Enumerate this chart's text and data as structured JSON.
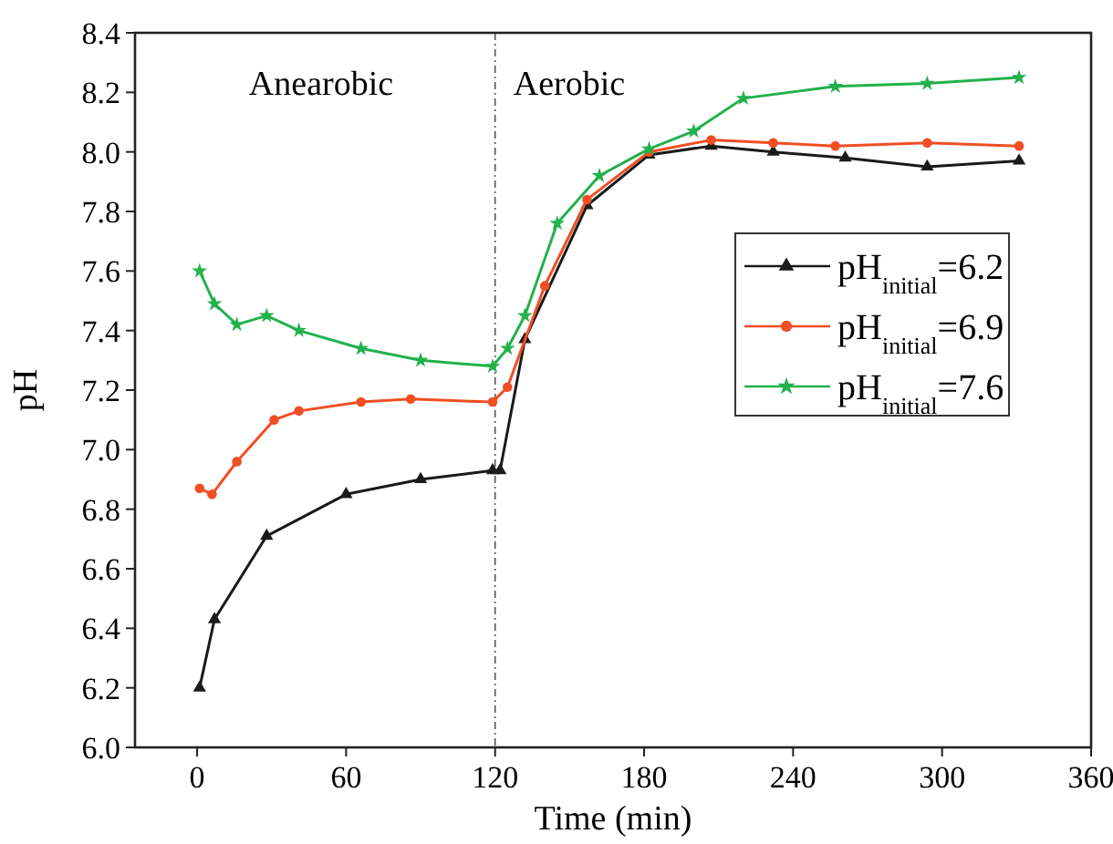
{
  "chart_data": {
    "type": "line",
    "xlabel": "Time (min)",
    "ylabel": "pH",
    "xlim": [
      -25,
      360
    ],
    "ylim": [
      6.0,
      8.4
    ],
    "xticks": [
      0,
      60,
      120,
      180,
      240,
      300,
      360
    ],
    "yticks": [
      {
        "value": 6.0,
        "label": "6.0"
      },
      {
        "value": 6.2,
        "label": "6.2"
      },
      {
        "value": 6.4,
        "label": "6.4"
      },
      {
        "value": 6.6,
        "label": "6.6"
      },
      {
        "value": 6.8,
        "label": "6.8"
      },
      {
        "value": 7.0,
        "label": "7.0"
      },
      {
        "value": 7.2,
        "label": "7.2"
      },
      {
        "value": 7.4,
        "label": "7.4"
      },
      {
        "value": 7.6,
        "label": "7.6"
      },
      {
        "value": 7.8,
        "label": "7.8"
      },
      {
        "value": 8.0,
        "label": "8.0"
      },
      {
        "value": 8.2,
        "label": "8.2"
      },
      {
        "value": 8.4,
        "label": "8.4"
      }
    ],
    "grid": false,
    "legend": "right",
    "line_style": "solid",
    "ref_lines": [
      {
        "axis": "x",
        "value": 120,
        "color": "#555555",
        "line_style": "dashed"
      }
    ],
    "annotations": [
      "Anearobic",
      "Aerobic"
    ],
    "series": [
      {
        "name": "pH$_{initial}$=6.2",
        "color": "#1a1a1a",
        "marker": "triangle",
        "x": [
          1,
          7,
          28,
          60,
          90,
          119,
          122,
          132,
          157,
          182,
          207,
          232,
          261,
          294,
          331
        ],
        "values": [
          6.2,
          6.43,
          6.71,
          6.85,
          6.9,
          6.93,
          6.93,
          7.37,
          7.82,
          7.99,
          8.02,
          8.0,
          7.98,
          7.95,
          7.97
        ]
      },
      {
        "name": "pH$_{initial}$=6.9",
        "color": "#f04e23",
        "marker": "circle",
        "x": [
          1,
          6,
          16,
          31,
          41,
          66,
          86,
          119,
          125,
          140,
          157,
          182,
          207,
          232,
          257,
          294,
          331
        ],
        "values": [
          6.87,
          6.85,
          6.96,
          7.1,
          7.13,
          7.16,
          7.17,
          7.16,
          7.21,
          7.55,
          7.84,
          8.0,
          8.04,
          8.03,
          8.02,
          8.03,
          8.02
        ]
      },
      {
        "name": "pH$_{initial}$=7.6",
        "color": "#22b14c",
        "marker": "star",
        "x": [
          1,
          7,
          16,
          28,
          41,
          66,
          90,
          119,
          125,
          132,
          145,
          162,
          182,
          200,
          220,
          257,
          294,
          331
        ],
        "values": [
          7.6,
          7.49,
          7.42,
          7.45,
          7.4,
          7.34,
          7.3,
          7.28,
          7.34,
          7.45,
          7.76,
          7.92,
          8.01,
          8.07,
          8.18,
          8.22,
          8.23,
          8.25
        ]
      }
    ]
  }
}
